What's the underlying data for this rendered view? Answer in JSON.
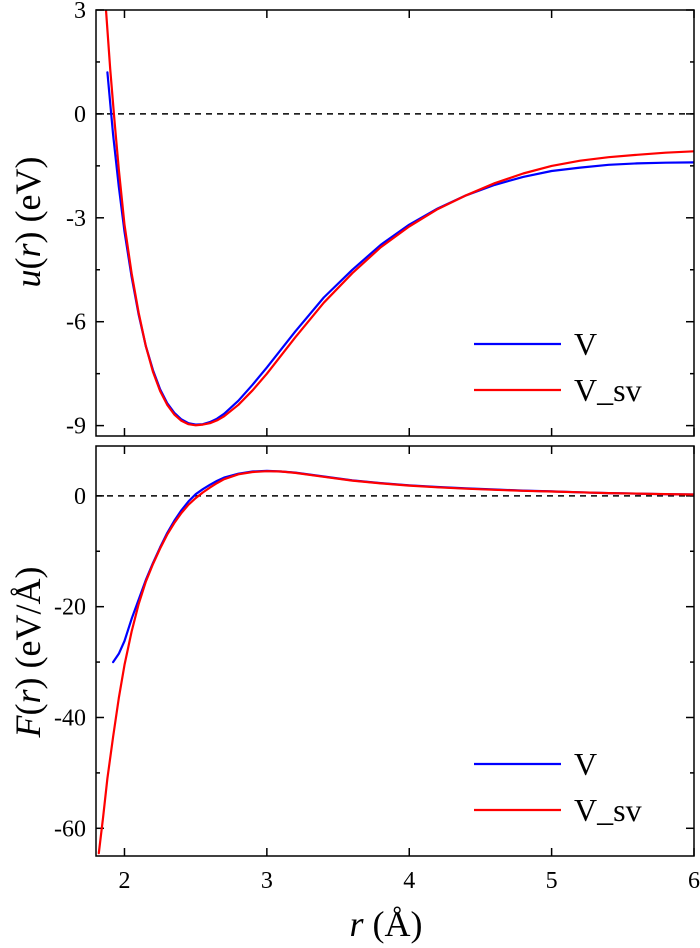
{
  "chart_data": [
    {
      "type": "line",
      "ylabel_pre": "u",
      "ylabel_var": "r",
      "ylabel_post": " (eV)",
      "xlim": [
        1.8,
        6
      ],
      "ylim": [
        -9.3,
        3
      ],
      "yticks": [
        3,
        0,
        -3,
        -6,
        -9
      ],
      "ytick_labels": [
        "3",
        "0",
        "-3",
        "-6",
        "-9"
      ],
      "xticks": [
        2,
        3,
        4,
        5,
        6
      ],
      "zero_line": true,
      "legend_position": "lower-right",
      "colors": {
        "V": "#0000ff",
        "V_sv": "#ff0000"
      },
      "series": [
        {
          "name": "V",
          "x": [
            1.88,
            1.92,
            1.96,
            2.0,
            2.05,
            2.1,
            2.15,
            2.2,
            2.25,
            2.3,
            2.35,
            2.4,
            2.45,
            2.5,
            2.55,
            2.6,
            2.65,
            2.7,
            2.8,
            2.9,
            3.0,
            3.2,
            3.4,
            3.6,
            3.8,
            4.0,
            4.2,
            4.4,
            4.6,
            4.8,
            5.0,
            5.2,
            5.4,
            5.6,
            5.8,
            6.0
          ],
          "y": [
            1.2,
            -0.6,
            -2.1,
            -3.4,
            -4.7,
            -5.8,
            -6.7,
            -7.4,
            -7.95,
            -8.35,
            -8.63,
            -8.82,
            -8.93,
            -8.97,
            -8.96,
            -8.9,
            -8.8,
            -8.66,
            -8.28,
            -7.82,
            -7.32,
            -6.28,
            -5.3,
            -4.5,
            -3.78,
            -3.2,
            -2.73,
            -2.35,
            -2.05,
            -1.82,
            -1.65,
            -1.55,
            -1.47,
            -1.43,
            -1.41,
            -1.4
          ]
        },
        {
          "name": "V_sv",
          "x": [
            1.87,
            1.9,
            1.93,
            1.96,
            2.0,
            2.05,
            2.1,
            2.15,
            2.2,
            2.25,
            2.3,
            2.35,
            2.4,
            2.45,
            2.5,
            2.55,
            2.6,
            2.65,
            2.7,
            2.8,
            2.9,
            3.0,
            3.2,
            3.4,
            3.6,
            3.8,
            4.0,
            4.2,
            4.4,
            4.6,
            4.8,
            5.0,
            5.2,
            5.4,
            5.6,
            5.8,
            6.0
          ],
          "y": [
            3.0,
            1.3,
            -0.2,
            -1.6,
            -3.2,
            -4.6,
            -5.75,
            -6.7,
            -7.45,
            -8.0,
            -8.4,
            -8.68,
            -8.86,
            -8.96,
            -8.99,
            -8.97,
            -8.93,
            -8.85,
            -8.73,
            -8.4,
            -7.98,
            -7.5,
            -6.45,
            -5.45,
            -4.6,
            -3.85,
            -3.25,
            -2.75,
            -2.35,
            -2.0,
            -1.72,
            -1.5,
            -1.35,
            -1.25,
            -1.18,
            -1.12,
            -1.08
          ]
        }
      ]
    },
    {
      "type": "line",
      "ylabel_pre": "F",
      "ylabel_var": "r",
      "ylabel_post": " (eV/Å)",
      "xlabel_var": "r",
      "xlabel_post": " (Å)",
      "xlim": [
        1.8,
        6
      ],
      "ylim": [
        -65,
        9
      ],
      "yticks": [
        0,
        -20,
        -40,
        -60
      ],
      "ytick_labels": [
        "0",
        "-20",
        "-40",
        "-60"
      ],
      "xticks": [
        2,
        3,
        4,
        5,
        6
      ],
      "xtick_labels": [
        "2",
        "3",
        "4",
        "5",
        "6"
      ],
      "zero_line": true,
      "legend_position": "lower-right",
      "colors": {
        "V": "#0000ff",
        "V_sv": "#ff0000"
      },
      "series": [
        {
          "name": "V",
          "x": [
            1.92,
            1.96,
            2.0,
            2.05,
            2.1,
            2.15,
            2.2,
            2.25,
            2.3,
            2.35,
            2.4,
            2.45,
            2.5,
            2.55,
            2.6,
            2.65,
            2.7,
            2.8,
            2.9,
            3.0,
            3.1,
            3.2,
            3.4,
            3.6,
            3.8,
            4.0,
            4.2,
            4.4,
            4.6,
            4.8,
            5.0,
            5.2,
            5.4,
            5.6,
            5.8,
            6.0
          ],
          "y": [
            -30.0,
            -28.5,
            -26.2,
            -22.2,
            -18.7,
            -15.2,
            -12.1,
            -9.3,
            -6.7,
            -4.5,
            -2.6,
            -1.0,
            0.3,
            1.2,
            2.0,
            2.7,
            3.3,
            4.0,
            4.4,
            4.5,
            4.4,
            4.2,
            3.5,
            2.8,
            2.3,
            1.9,
            1.6,
            1.35,
            1.15,
            0.95,
            0.8,
            0.65,
            0.5,
            0.4,
            0.3,
            0.25
          ]
        },
        {
          "name": "V_sv",
          "x": [
            1.82,
            1.85,
            1.88,
            1.92,
            1.96,
            2.0,
            2.05,
            2.1,
            2.15,
            2.2,
            2.25,
            2.3,
            2.35,
            2.4,
            2.45,
            2.5,
            2.55,
            2.6,
            2.65,
            2.7,
            2.8,
            2.9,
            3.0,
            3.1,
            3.2,
            3.4,
            3.6,
            3.8,
            4.0,
            4.2,
            4.4,
            4.6,
            4.8,
            5.0,
            5.2,
            5.4,
            5.6,
            5.8,
            6.0
          ],
          "y": [
            -64.5,
            -58.0,
            -51.0,
            -43.5,
            -36.5,
            -30.5,
            -24.5,
            -19.5,
            -15.5,
            -12.3,
            -9.5,
            -7.0,
            -4.9,
            -3.1,
            -1.6,
            -0.4,
            0.6,
            1.5,
            2.3,
            3.0,
            3.9,
            4.3,
            4.45,
            4.4,
            4.15,
            3.45,
            2.75,
            2.25,
            1.85,
            1.55,
            1.3,
            1.1,
            0.92,
            0.78,
            0.65,
            0.5,
            0.4,
            0.32,
            0.25
          ]
        }
      ]
    }
  ]
}
